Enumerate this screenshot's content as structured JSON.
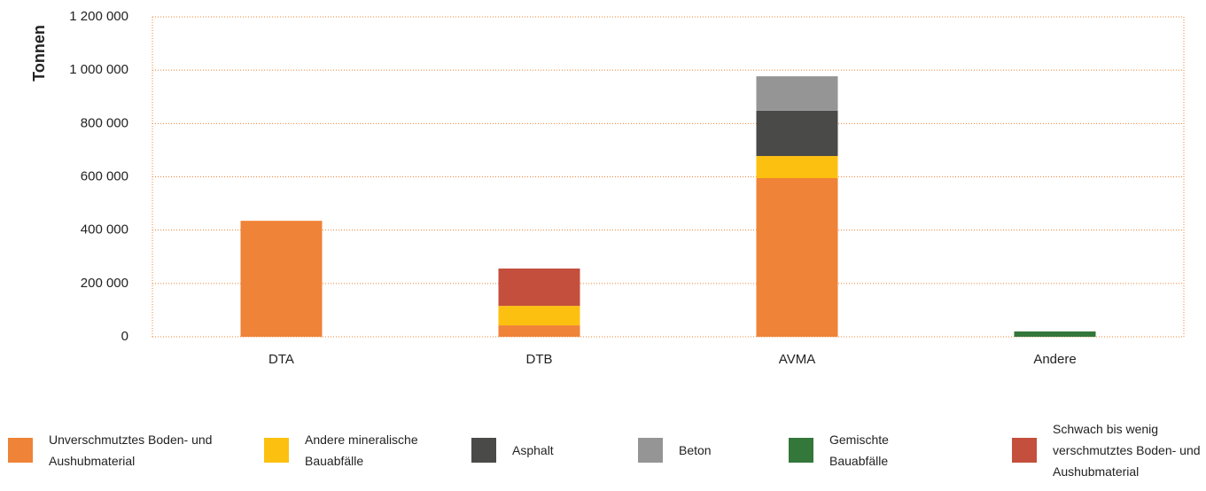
{
  "chart_data": {
    "type": "stacked_bar",
    "y_label": "Tonnen",
    "categories": [
      "DTA",
      "DTB",
      "AVMA",
      "Andere"
    ],
    "series": [
      {
        "name": "Unverschmutztes Boden- und Aushubmaterial",
        "color": "#ef8337",
        "values": [
          435000,
          43000,
          595000,
          null
        ]
      },
      {
        "name": "Andere mineralische Bauabfälle",
        "color": "#fcc010",
        "values": [
          null,
          73000,
          83000,
          null
        ]
      },
      {
        "name": "Asphalt",
        "color": "#4a4a48",
        "values": [
          null,
          null,
          170000,
          null
        ]
      },
      {
        "name": "Beton",
        "color": "#959595",
        "values": [
          null,
          null,
          129000,
          null
        ]
      },
      {
        "name": "Gemischte Bauabfälle",
        "color": "#34773b",
        "values": [
          null,
          null,
          null,
          20000
        ]
      },
      {
        "name": "Schwach bis wenig verschmutztes Boden- und Aushubmaterial",
        "color": "#c44f3c",
        "values": [
          null,
          140000,
          null,
          null
        ]
      }
    ],
    "ylim": [
      0,
      1200000
    ],
    "yticks": [
      0,
      {
        "value": 200000,
        "label": "200 000"
      },
      {
        "value": 400000,
        "label": "400 000"
      },
      {
        "value": 600000,
        "label": "600 000"
      },
      {
        "value": 800000,
        "label": "800 000"
      },
      {
        "value": 1000000,
        "label": "1 000 000"
      },
      {
        "value": 1200000,
        "label": "1 200 000"
      }
    ],
    "grid": true
  }
}
